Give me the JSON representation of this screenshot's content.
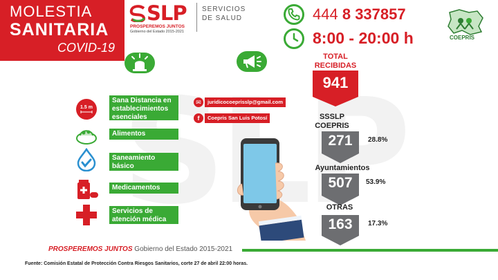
{
  "title": {
    "line1": "MOLESTIA",
    "line2": "SANITARIA",
    "line3": "COVID-19"
  },
  "header": {
    "slp_logo_text": "SLP",
    "slp_tagline": "PROSPEREMOS JUNTOS",
    "slp_gov": "Gobierno del Estado 2015-2021",
    "servicios_line1": "SERVICIOS",
    "servicios_line2": "DE SALUD",
    "phone_prefix": "444",
    "phone_number": "8 337857",
    "hours": "8:00 - 20:00 h",
    "coepris_label": "COEPRIS"
  },
  "categories": [
    {
      "icon": "distance-icon",
      "badge": "1.5 m",
      "label": "Sana Distancia en establecimientos esenciales"
    },
    {
      "icon": "food-icon",
      "label": "Alimentos"
    },
    {
      "icon": "water-drop-icon",
      "label": "Saneamiento básico"
    },
    {
      "icon": "medicine-icon",
      "label": "Medicamentos"
    },
    {
      "icon": "medical-cross-icon",
      "label": "Servicios de atención médica"
    }
  ],
  "contacts": [
    {
      "icon": "email-icon",
      "glyph": "✉",
      "text": "juridicocoeprisslp@gmail.com"
    },
    {
      "icon": "facebook-icon",
      "glyph": "f",
      "text": "Coepris San Luis Potosí"
    }
  ],
  "stats": {
    "total_label_1": "TOTAL",
    "total_label_2": "RECIBIDAS",
    "total_value": "941",
    "items": [
      {
        "label_1": "SSSLP",
        "label_2": "COEPRIS",
        "value": "271",
        "pct": "28.8%"
      },
      {
        "label_1": "Ayuntamientos",
        "label_2": "",
        "value": "507",
        "pct": "53.9%"
      },
      {
        "label_1": "OTRAS",
        "label_2": "",
        "value": "163",
        "pct": "17.3%"
      }
    ]
  },
  "footer": {
    "pj": "PROSPEREMOS JUNTOS",
    "gov": "Gobierno del Estado 2015-2021",
    "source": "Fuente: Comisión Estatal de Protección Contra Riesgos Sanitarios, corte 27 de abril 22:00 horas."
  },
  "colors": {
    "red": "#d71f26",
    "green": "#3aaa35",
    "gray": "#6d6e71"
  }
}
